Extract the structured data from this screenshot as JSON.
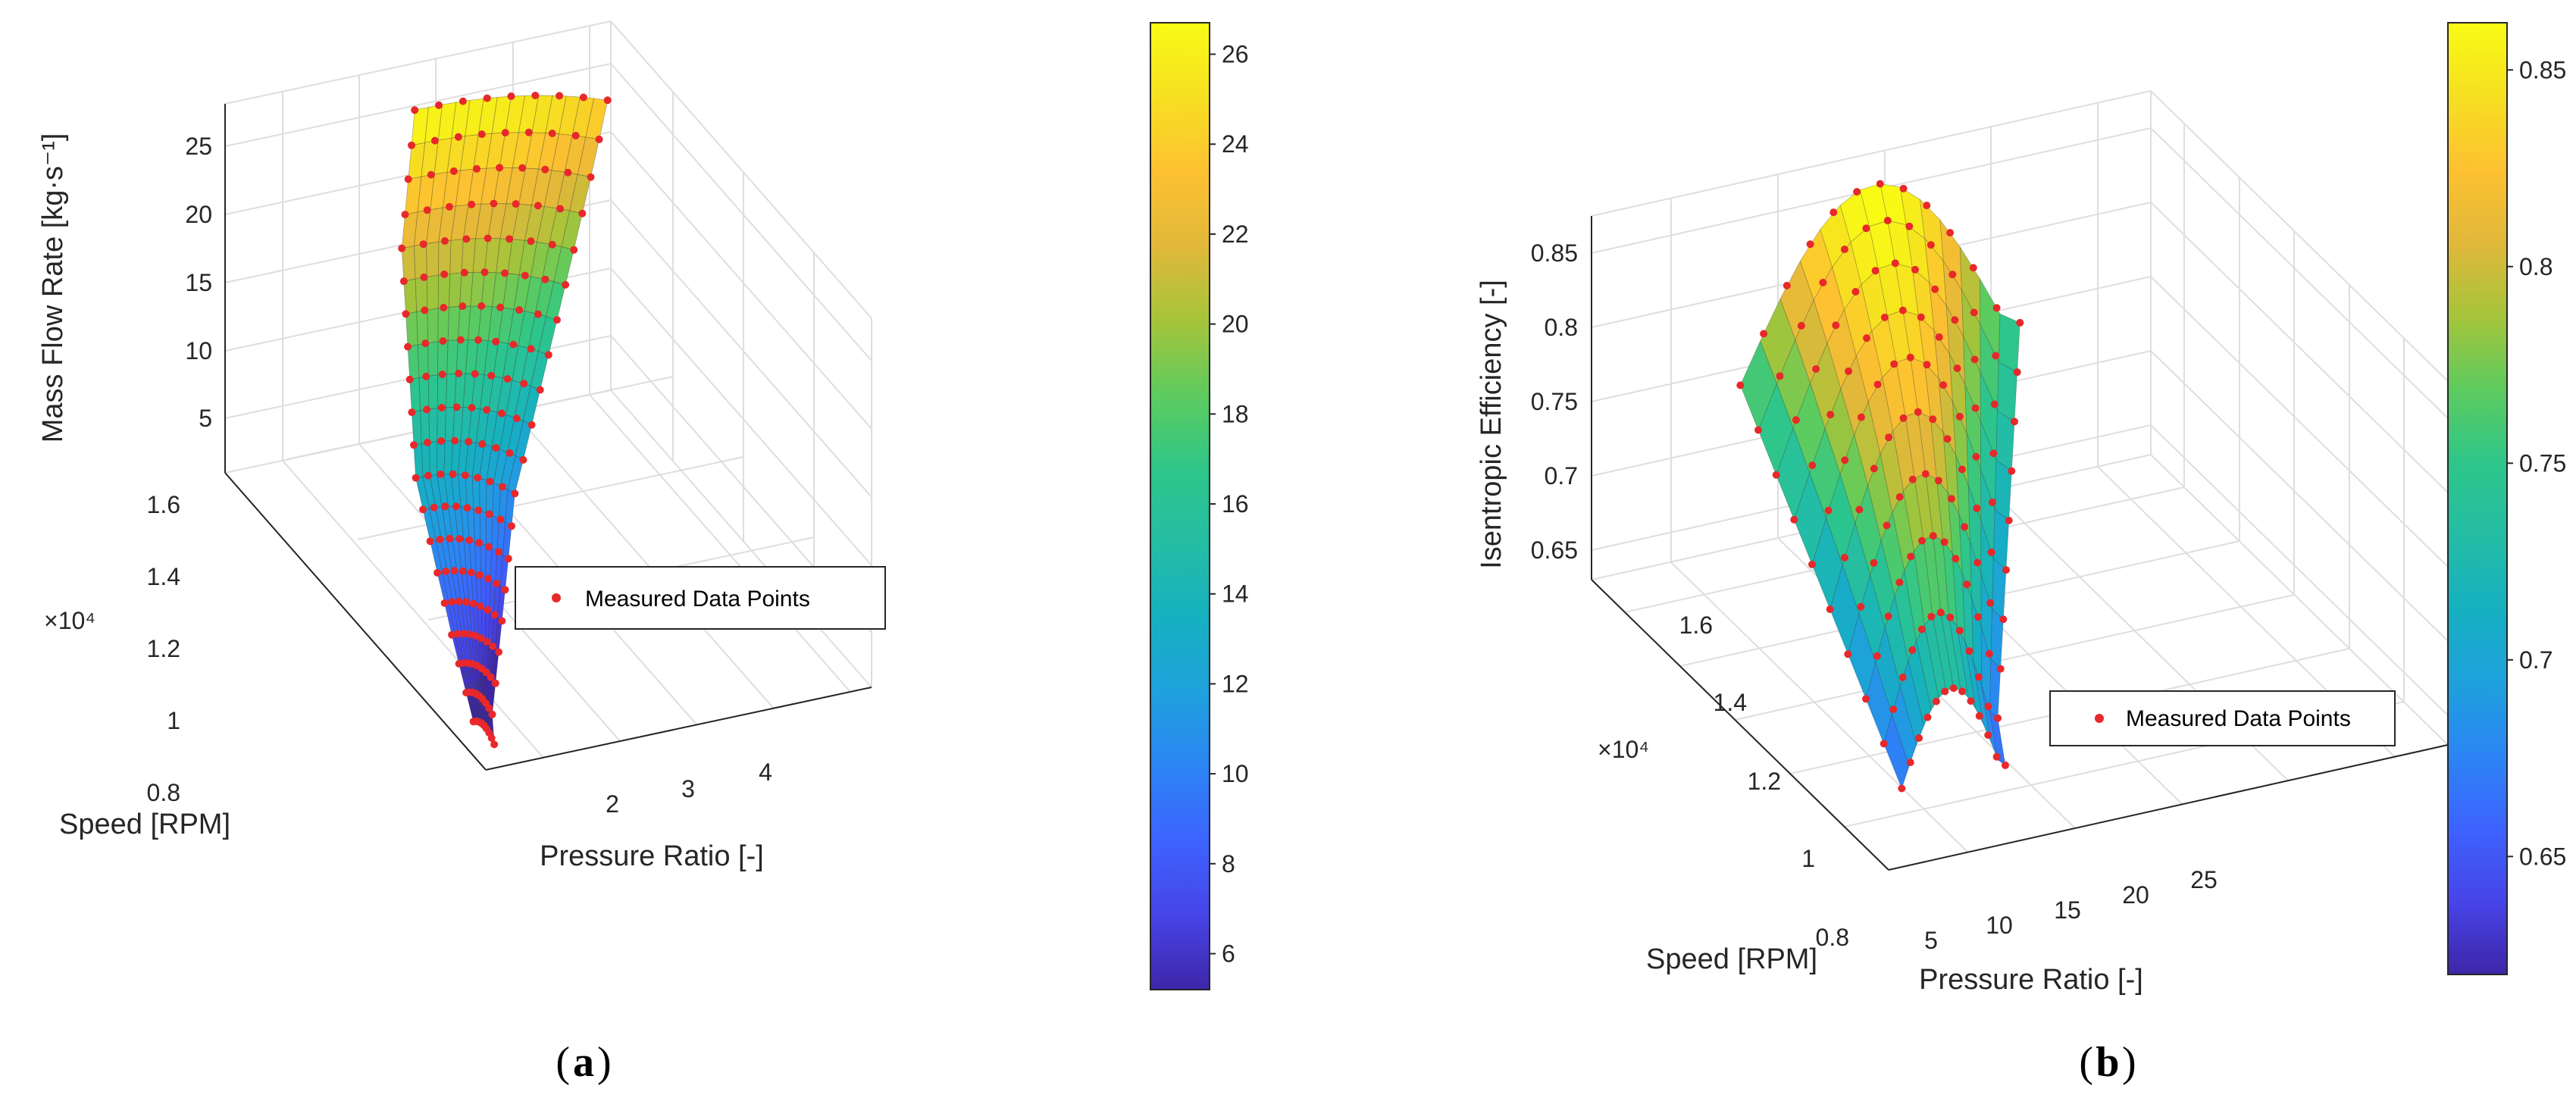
{
  "colormap": [
    "#3e26a8",
    "#4744e8",
    "#3d63fe",
    "#2c85f4",
    "#1ea1dc",
    "#16b0c1",
    "#24bda4",
    "#2ec689",
    "#5ecb5e",
    "#a6c43a",
    "#e1b83a",
    "#fdc131",
    "#f6e021",
    "#f9fb15"
  ],
  "marker_color": "#e8282a",
  "chart_data": [
    {
      "type": "surface3d",
      "panel_label": "a",
      "xlabel": "Pressure Ratio [-]",
      "ylabel": "Speed [RPM]",
      "zlabel": "Mass Flow Rate [kg·s⁻¹]",
      "y_multiplier": "×10⁴",
      "xlim": [
        1.1,
        4.8
      ],
      "ylim": [
        0.7,
        1.75
      ],
      "zlim": [
        2,
        29
      ],
      "x_ticks": [
        "2",
        "3",
        "4"
      ],
      "y_ticks": [
        "0.8",
        "1",
        "1.2",
        "1.4",
        "1.6"
      ],
      "z_ticks": [
        "5",
        "10",
        "15",
        "20",
        "25"
      ],
      "colorbar": {
        "min": 5.2,
        "max": 26.7,
        "ticks": [
          "6",
          "8",
          "10",
          "12",
          "14",
          "16",
          "18",
          "20",
          "22",
          "24",
          "26"
        ]
      },
      "legend": "Measured Data Points",
      "speed_lines": [
        {
          "speed": 0.75,
          "pr_min": 1.1,
          "pr_max": 1.3,
          "m_choke": 4.5,
          "m_surge": 2.5
        },
        {
          "speed": 0.8,
          "pr_min": 1.15,
          "pr_max": 1.4,
          "m_choke": 5.5,
          "m_surge": 3.5
        },
        {
          "speed": 0.85,
          "pr_min": 1.2,
          "pr_max": 1.55,
          "m_choke": 6.5,
          "m_surge": 4.5
        },
        {
          "speed": 0.9,
          "pr_min": 1.25,
          "pr_max": 1.7,
          "m_choke": 7.5,
          "m_surge": 5.5
        },
        {
          "speed": 0.95,
          "pr_min": 1.3,
          "pr_max": 1.85,
          "m_choke": 8.7,
          "m_surge": 6.5
        },
        {
          "speed": 1.0,
          "pr_min": 1.35,
          "pr_max": 2.0,
          "m_choke": 9.8,
          "m_surge": 7.5
        },
        {
          "speed": 1.05,
          "pr_min": 1.4,
          "pr_max": 2.15,
          "m_choke": 11.0,
          "m_surge": 8.5
        },
        {
          "speed": 1.1,
          "pr_min": 1.45,
          "pr_max": 2.3,
          "m_choke": 12.2,
          "m_surge": 9.6
        },
        {
          "speed": 1.15,
          "pr_min": 1.5,
          "pr_max": 2.45,
          "m_choke": 13.4,
          "m_surge": 10.7
        },
        {
          "speed": 1.2,
          "pr_min": 1.6,
          "pr_max": 2.65,
          "m_choke": 14.6,
          "m_surge": 11.8
        },
        {
          "speed": 1.25,
          "pr_min": 1.7,
          "pr_max": 2.85,
          "m_choke": 15.8,
          "m_surge": 13.0
        },
        {
          "speed": 1.3,
          "pr_min": 1.8,
          "pr_max": 3.05,
          "m_choke": 17.0,
          "m_surge": 14.2
        },
        {
          "speed": 1.35,
          "pr_min": 1.9,
          "pr_max": 3.25,
          "m_choke": 18.2,
          "m_surge": 15.4
        },
        {
          "speed": 1.4,
          "pr_min": 2.0,
          "pr_max": 3.45,
          "m_choke": 19.4,
          "m_surge": 16.6
        },
        {
          "speed": 1.45,
          "pr_min": 2.1,
          "pr_max": 3.65,
          "m_choke": 20.6,
          "m_surge": 17.8
        },
        {
          "speed": 1.5,
          "pr_min": 2.2,
          "pr_max": 3.85,
          "m_choke": 21.8,
          "m_surge": 19.0
        },
        {
          "speed": 1.55,
          "pr_min": 2.35,
          "pr_max": 4.05,
          "m_choke": 23.0,
          "m_surge": 20.3
        },
        {
          "speed": 1.6,
          "pr_min": 2.5,
          "pr_max": 4.25,
          "m_choke": 24.3,
          "m_surge": 21.6
        },
        {
          "speed": 1.65,
          "pr_min": 2.65,
          "pr_max": 4.45,
          "m_choke": 25.5,
          "m_surge": 23.0
        },
        {
          "speed": 1.7,
          "pr_min": 2.8,
          "pr_max": 4.65,
          "m_choke": 26.8,
          "m_surge": 24.5
        }
      ]
    },
    {
      "type": "surface3d",
      "panel_label": "b",
      "xlabel": "Pressure Ratio [-]",
      "ylabel": "Speed [RPM]",
      "zlabel": "Isentropic Efficiency [-]",
      "y_multiplier": "×10⁴",
      "xlim": [
        2,
        29
      ],
      "ylim": [
        0.7,
        1.75
      ],
      "zlim": [
        0.63,
        0.875
      ],
      "x_ticks": [
        "5",
        "10",
        "15",
        "20",
        "25"
      ],
      "y_ticks": [
        "0.8",
        "1",
        "1.2",
        "1.4",
        "1.6"
      ],
      "z_ticks": [
        "0.65",
        "0.7",
        "0.75",
        "0.8",
        "0.85"
      ],
      "colorbar": {
        "min": 0.62,
        "max": 0.862,
        "ticks": [
          "0.65",
          "0.7",
          "0.75",
          "0.8",
          "0.85"
        ]
      },
      "legend": "Measured Data Points",
      "speed_lines": [
        {
          "speed": 0.8,
          "pr_min": 4.0,
          "pr_max": 9.0,
          "eff_peak": 0.72,
          "eff_min": 0.66
        },
        {
          "speed": 0.9,
          "pr_min": 4.5,
          "pr_max": 10.0,
          "eff_peak": 0.75,
          "eff_min": 0.67
        },
        {
          "speed": 1.0,
          "pr_min": 5.0,
          "pr_max": 11.5,
          "eff_peak": 0.78,
          "eff_min": 0.68
        },
        {
          "speed": 1.1,
          "pr_min": 5.5,
          "pr_max": 13.0,
          "eff_peak": 0.8,
          "eff_min": 0.69
        },
        {
          "speed": 1.2,
          "pr_min": 6.0,
          "pr_max": 14.5,
          "eff_peak": 0.82,
          "eff_min": 0.7
        },
        {
          "speed": 1.3,
          "pr_min": 6.5,
          "pr_max": 16.0,
          "eff_peak": 0.835,
          "eff_min": 0.71
        },
        {
          "speed": 1.4,
          "pr_min": 7.0,
          "pr_max": 17.5,
          "eff_peak": 0.845,
          "eff_min": 0.72
        },
        {
          "speed": 1.5,
          "pr_min": 7.5,
          "pr_max": 19.0,
          "eff_peak": 0.855,
          "eff_min": 0.73
        },
        {
          "speed": 1.6,
          "pr_min": 8.0,
          "pr_max": 20.5,
          "eff_peak": 0.862,
          "eff_min": 0.74
        },
        {
          "speed": 1.7,
          "pr_min": 8.5,
          "pr_max": 22.0,
          "eff_peak": 0.865,
          "eff_min": 0.75
        }
      ]
    }
  ]
}
